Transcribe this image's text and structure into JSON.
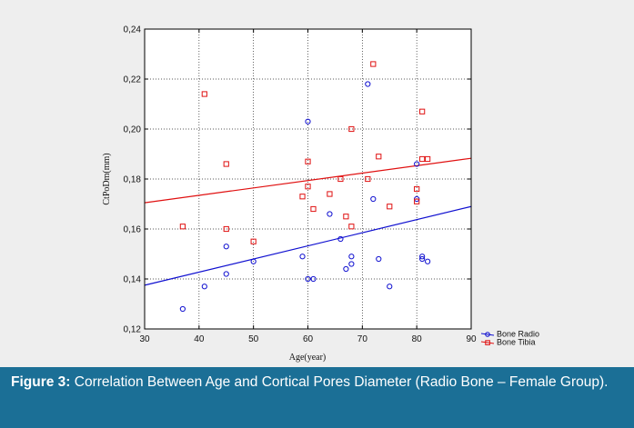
{
  "chart_data": {
    "type": "scatter",
    "xlabel": "Age(year)",
    "ylabel": "CtPoDm(mm)",
    "xlim": [
      30,
      90
    ],
    "ylim": [
      0.12,
      0.24
    ],
    "x_ticks": [
      "30",
      "40",
      "50",
      "60",
      "70",
      "80",
      "90"
    ],
    "y_ticks": [
      "0,12",
      "0,14",
      "0,16",
      "0,18",
      "0,20",
      "0,22",
      "0,24"
    ],
    "grid": true,
    "legend_position": "bottom-right outside",
    "series": [
      {
        "name": "Bone Radio",
        "color": "#1010d0",
        "marker": "circle",
        "points": [
          [
            37,
            0.128
          ],
          [
            41,
            0.137
          ],
          [
            45,
            0.142
          ],
          [
            45,
            0.153
          ],
          [
            50,
            0.147
          ],
          [
            59,
            0.149
          ],
          [
            60,
            0.14
          ],
          [
            60,
            0.203
          ],
          [
            61,
            0.14
          ],
          [
            64,
            0.166
          ],
          [
            66,
            0.156
          ],
          [
            67,
            0.144
          ],
          [
            68,
            0.146
          ],
          [
            68,
            0.149
          ],
          [
            71,
            0.218
          ],
          [
            72,
            0.172
          ],
          [
            73,
            0.148
          ],
          [
            75,
            0.137
          ],
          [
            80,
            0.172
          ],
          [
            80,
            0.186
          ],
          [
            81,
            0.148
          ],
          [
            81,
            0.149
          ],
          [
            82,
            0.147
          ]
        ],
        "fit": {
          "x": [
            30,
            90
          ],
          "y": [
            0.1375,
            0.169
          ]
        }
      },
      {
        "name": "Bone Tibia",
        "color": "#e01010",
        "marker": "square",
        "points": [
          [
            37,
            0.161
          ],
          [
            41,
            0.214
          ],
          [
            45,
            0.186
          ],
          [
            45,
            0.16
          ],
          [
            50,
            0.155
          ],
          [
            59,
            0.173
          ],
          [
            60,
            0.187
          ],
          [
            60,
            0.177
          ],
          [
            61,
            0.168
          ],
          [
            64,
            0.174
          ],
          [
            66,
            0.18
          ],
          [
            67,
            0.165
          ],
          [
            68,
            0.161
          ],
          [
            68,
            0.2
          ],
          [
            71,
            0.18
          ],
          [
            72,
            0.226
          ],
          [
            73,
            0.189
          ],
          [
            75,
            0.169
          ],
          [
            80,
            0.176
          ],
          [
            80,
            0.171
          ],
          [
            81,
            0.207
          ],
          [
            81,
            0.188
          ],
          [
            82,
            0.188
          ]
        ],
        "fit": {
          "x": [
            30,
            90
          ],
          "y": [
            0.1705,
            0.1883
          ]
        }
      }
    ]
  },
  "caption": {
    "label": "Figure 3:",
    "text": "Correlation Between Age and Cortical Pores Diameter (Radio Bone – Female Group)."
  }
}
